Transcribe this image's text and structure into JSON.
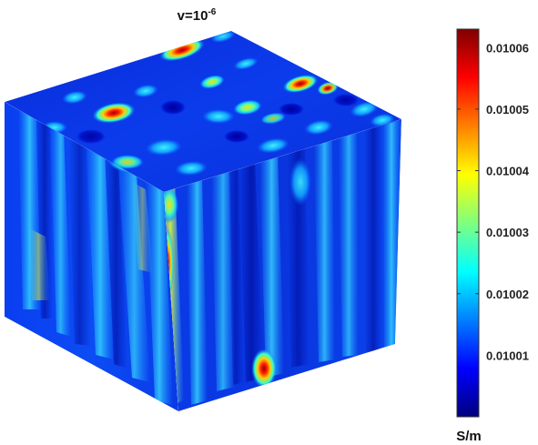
{
  "chart_data": {
    "type": "heatmap",
    "subtype": "3d-volume-slice-cube",
    "title": {
      "prefix": "v=10",
      "exponent": "-6"
    },
    "colormap": "jet",
    "colorbar": {
      "unit": "S/m",
      "min": 0.01,
      "max": 0.010063,
      "ticks": [
        {
          "value": 0.01001,
          "label": "0.01001"
        },
        {
          "value": 0.01002,
          "label": "0.01002"
        },
        {
          "value": 0.01003,
          "label": "0.01003"
        },
        {
          "value": 0.01004,
          "label": "0.01004"
        },
        {
          "value": 0.01005,
          "label": "0.01005"
        },
        {
          "value": 0.01006,
          "label": "0.01006"
        }
      ],
      "placement": "right"
    },
    "grid": false
  }
}
